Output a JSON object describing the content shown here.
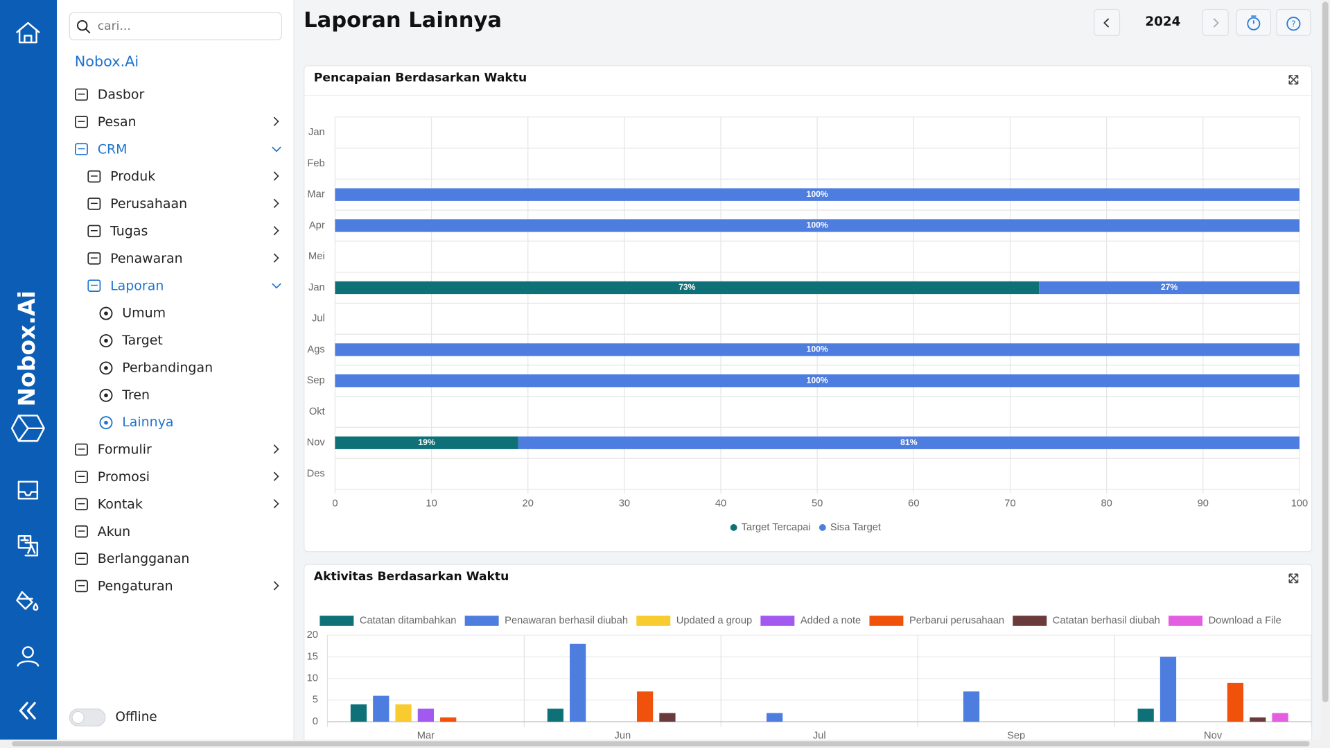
{
  "rail": {
    "brand": "Nobox.Ai"
  },
  "sidebar": {
    "search_placeholder": "cari...",
    "brand": "Nobox.Ai",
    "menu": [
      {
        "label": "Dasbor",
        "level": 0
      },
      {
        "label": "Pesan",
        "level": 0,
        "arrow": "right"
      },
      {
        "label": "CRM",
        "level": 0,
        "arrow": "down",
        "active": true
      },
      {
        "label": "Produk",
        "level": 1,
        "arrow": "right"
      },
      {
        "label": "Perusahaan",
        "level": 1,
        "arrow": "right"
      },
      {
        "label": "Tugas",
        "level": 1,
        "arrow": "right"
      },
      {
        "label": "Penawaran",
        "level": 1,
        "arrow": "right"
      },
      {
        "label": "Laporan",
        "level": 1,
        "arrow": "down",
        "active": true
      },
      {
        "label": "Umum",
        "level": 2
      },
      {
        "label": "Target",
        "level": 2
      },
      {
        "label": "Perbandingan",
        "level": 2
      },
      {
        "label": "Tren",
        "level": 2
      },
      {
        "label": "Lainnya",
        "level": 2,
        "active": true
      },
      {
        "label": "Formulir",
        "level": 0,
        "arrow": "right"
      },
      {
        "label": "Promosi",
        "level": 0,
        "arrow": "right"
      },
      {
        "label": "Kontak",
        "level": 0,
        "arrow": "right"
      },
      {
        "label": "Akun",
        "level": 0
      },
      {
        "label": "Berlangganan",
        "level": 0
      },
      {
        "label": "Pengaturan",
        "level": 0,
        "arrow": "right"
      }
    ],
    "status": "Offline"
  },
  "header": {
    "title": "Laporan Lainnya",
    "year": "2024"
  },
  "chart_data": [
    {
      "type": "hbar-stacked",
      "title": "Pencapaian Berdasarkan Waktu",
      "categories": [
        "Jan",
        "Feb",
        "Mar",
        "Apr",
        "Mei",
        "Jan",
        "Jul",
        "Ags",
        "Sep",
        "Okt",
        "Nov",
        "Des"
      ],
      "series": [
        {
          "name": "Target Tercapai",
          "color": "#0e7178",
          "values": [
            null,
            null,
            0,
            0,
            null,
            73,
            null,
            0,
            0,
            null,
            19,
            null
          ],
          "value_labels": [
            null,
            null,
            null,
            null,
            null,
            "73%",
            null,
            null,
            null,
            null,
            "19%",
            null
          ]
        },
        {
          "name": "Sisa Target",
          "color": "#4e7de0",
          "values": [
            null,
            null,
            100,
            100,
            null,
            27,
            null,
            100,
            100,
            null,
            81,
            null
          ],
          "value_labels": [
            null,
            null,
            "100%",
            "100%",
            null,
            "27%",
            null,
            "100%",
            "100%",
            null,
            "81%",
            null
          ]
        }
      ],
      "xlim": [
        0,
        100
      ],
      "xticks": [
        0,
        10,
        20,
        30,
        40,
        50,
        60,
        70,
        80,
        90,
        100
      ],
      "grid": true,
      "legend": "bottom"
    },
    {
      "type": "bar-grouped",
      "title": "Aktivitas Berdasarkan Waktu",
      "categories": [
        "Mar",
        "Jun",
        "Jul",
        "Sep",
        "Nov"
      ],
      "series": [
        {
          "name": "Catatan ditambahkan",
          "color": "#0e7178",
          "values": [
            4,
            3,
            0,
            0,
            3
          ]
        },
        {
          "name": "Penawaran berhasil diubah",
          "color": "#4e7de0",
          "values": [
            6,
            18,
            2,
            7,
            15
          ]
        },
        {
          "name": "Updated a group",
          "color": "#f8cb2e",
          "values": [
            4,
            0,
            0,
            0,
            0
          ]
        },
        {
          "name": "Added a note",
          "color": "#a259f0",
          "values": [
            3,
            0,
            0,
            0,
            0
          ]
        },
        {
          "name": "Perbarui perusahaan",
          "color": "#f0520c",
          "values": [
            1,
            7,
            0,
            0,
            9
          ]
        },
        {
          "name": "Catatan berhasil diubah",
          "color": "#6b3a3a",
          "values": [
            0,
            2,
            0,
            0,
            1
          ]
        },
        {
          "name": "Download a File",
          "color": "#e35ee0",
          "values": [
            0,
            0,
            0,
            0,
            2
          ]
        }
      ],
      "ylim": [
        0,
        20
      ],
      "yticks": [
        0,
        5,
        10,
        15,
        20
      ],
      "grid": true,
      "legend": "top"
    }
  ]
}
